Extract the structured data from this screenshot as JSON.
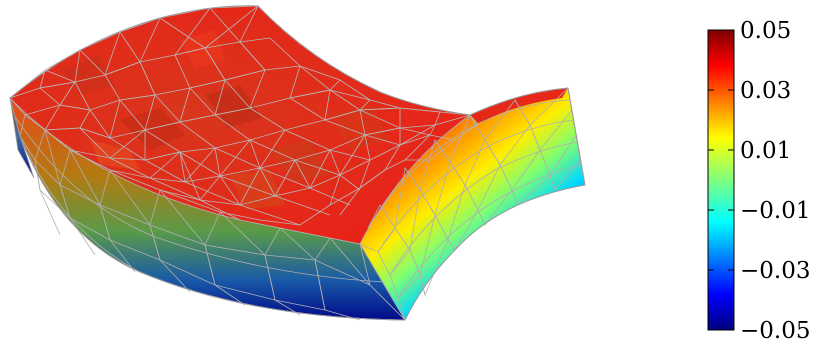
{
  "colorbar": {
    "colormap": "jet",
    "min": -0.05,
    "max": 0.05,
    "ticks": [
      {
        "value": 0.05,
        "label": "0.05"
      },
      {
        "value": 0.03,
        "label": "0.03"
      },
      {
        "value": 0.01,
        "label": "0.01"
      },
      {
        "value": -0.01,
        "label": "−0.01"
      },
      {
        "value": -0.03,
        "label": "−0.03"
      },
      {
        "value": -0.05,
        "label": "−0.05"
      }
    ],
    "stops": [
      "#7f0000",
      "#ff0000",
      "#ffff00",
      "#00ffff",
      "#0000ff",
      "#00007f"
    ]
  },
  "colors": {
    "mesh_line": "#b8b8b8",
    "top_surface": "#e0301a",
    "background": "#ffffff"
  }
}
